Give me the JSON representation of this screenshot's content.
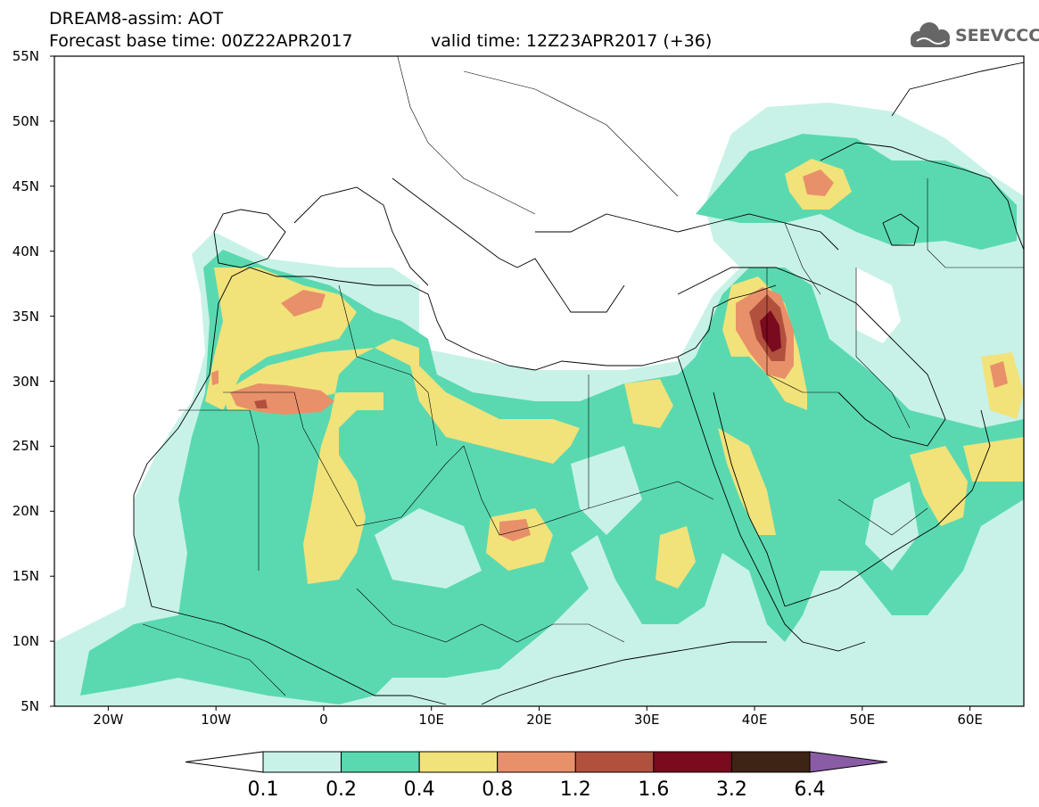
{
  "header": {
    "title": "DREAM8-assim: AOT",
    "base_time": "Forecast base time: 00Z22APR2017",
    "valid_time": "valid time: 12Z23APR2017 (+36)",
    "logo_text": "SEEVCCC"
  },
  "map": {
    "variable": "AOT",
    "lat_ticks": [
      "55N",
      "50N",
      "45N",
      "40N",
      "35N",
      "30N",
      "25N",
      "20N",
      "15N",
      "10N",
      "5N"
    ],
    "lon_ticks": [
      "20W",
      "10W",
      "0",
      "10E",
      "20E",
      "30E",
      "40E",
      "50E",
      "60E"
    ]
  },
  "colorbar": {
    "labels": [
      "0.1",
      "0.2",
      "0.4",
      "0.8",
      "1.2",
      "1.6",
      "3.2",
      "6.4"
    ],
    "colors": [
      "#c8f2e8",
      "#5ad9b0",
      "#f2e27a",
      "#e8906a",
      "#b2503e",
      "#7a0a1e",
      "#3e2414",
      "#8a5ca6"
    ],
    "under_color": "#ffffff"
  },
  "colors": {
    "c1": "#c8f2e8",
    "c2": "#5ad9b0",
    "c3": "#f2e27a",
    "c4": "#e8906a",
    "c5": "#b2503e",
    "c6": "#7a0a1e"
  }
}
